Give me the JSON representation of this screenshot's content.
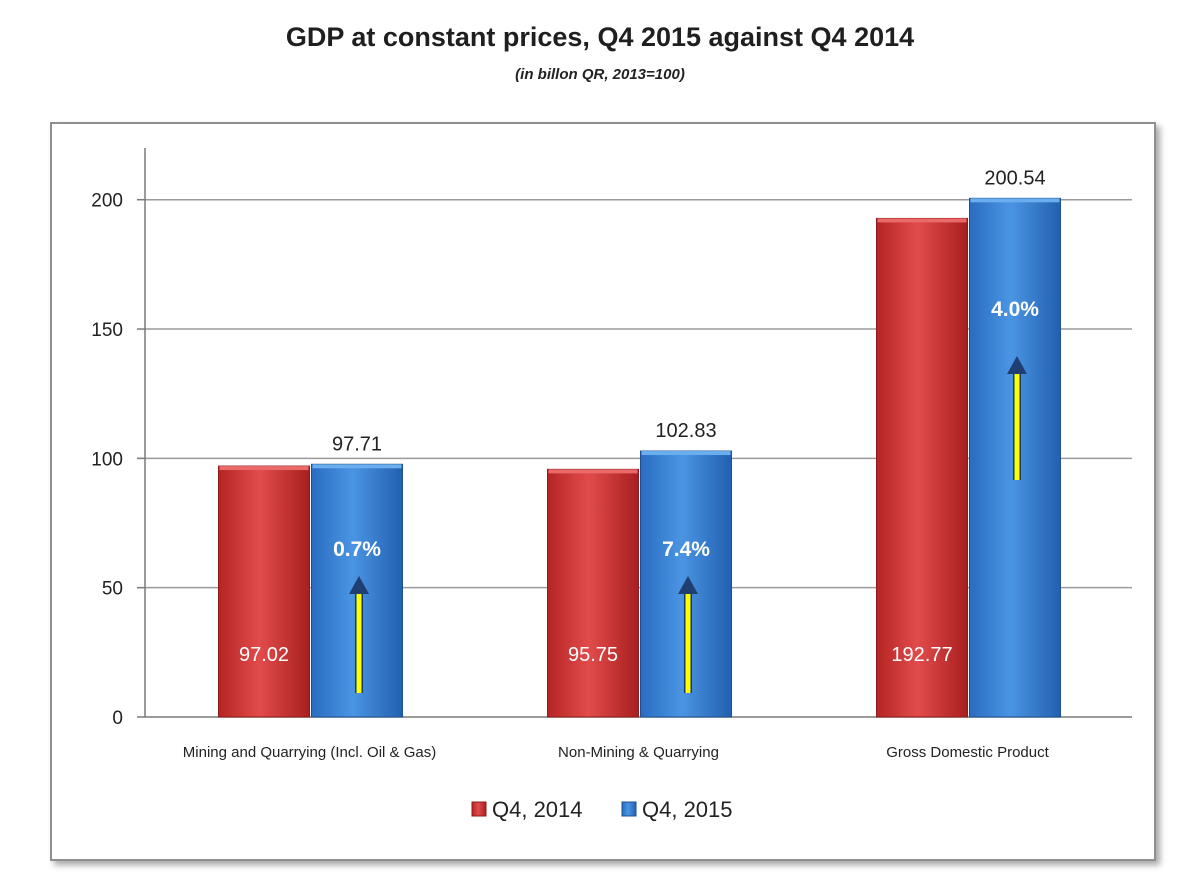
{
  "chart_data": {
    "type": "bar",
    "title": "GDP at constant prices, Q4 2015 against Q4 2014",
    "subtitle": "(in billon QR, 2013=100)",
    "categories": [
      "Mining and Quarrying (Incl. Oil & Gas)",
      "Non-Mining & Quarrying",
      "Gross Domestic Product"
    ],
    "series": [
      {
        "name": "Q4, 2014",
        "color": "#d93a3a",
        "values": [
          97.02,
          95.75,
          192.77
        ],
        "labels": [
          "97.02",
          "95.75",
          "192.77"
        ]
      },
      {
        "name": "Q4, 2015",
        "color": "#3f86d6",
        "values": [
          97.71,
          102.83,
          200.54
        ],
        "labels": [
          "97.71",
          "102.83",
          "200.54"
        ]
      }
    ],
    "growth_labels": [
      "0.7%",
      "7.4%",
      "4.0%"
    ],
    "ylim": [
      0,
      220
    ],
    "yticks": [
      0,
      50,
      100,
      150,
      200
    ],
    "grid": true,
    "legend_position": "bottom-center",
    "arrow_color": "#ffff00"
  }
}
